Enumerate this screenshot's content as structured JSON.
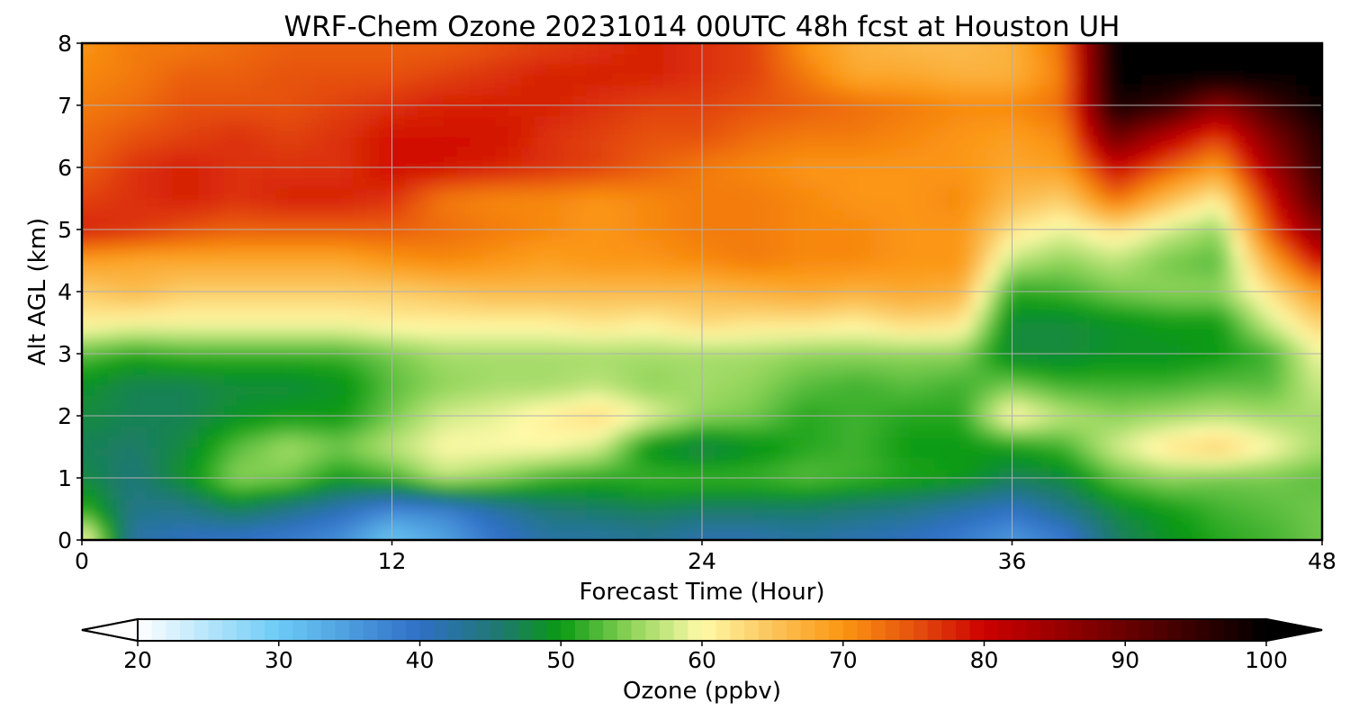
{
  "chart_data": {
    "type": "heatmap",
    "title": "WRF-Chem Ozone  20231014 00UTC 48h fcst at Houston UH",
    "xlabel": "Forecast Time (Hour)",
    "ylabel": "Alt AGL (km)",
    "xlim": [
      0,
      48
    ],
    "ylim": [
      0,
      8
    ],
    "x_ticks": [
      0,
      12,
      24,
      36,
      48
    ],
    "y_ticks": [
      0,
      1,
      2,
      3,
      4,
      5,
      6,
      7,
      8
    ],
    "grid": true,
    "x": [
      0,
      2,
      4,
      6,
      8,
      10,
      12,
      14,
      16,
      18,
      20,
      22,
      24,
      26,
      28,
      30,
      32,
      34,
      36,
      38,
      40,
      42,
      44,
      46,
      48
    ],
    "y": [
      0,
      0.5,
      1,
      1.5,
      2,
      2.5,
      3,
      3.5,
      4,
      4.5,
      5,
      5.5,
      6,
      6.5,
      7,
      7.5,
      8
    ],
    "z": [
      [
        62,
        42,
        40,
        39,
        38,
        36,
        30,
        34,
        39,
        42,
        42,
        43,
        41,
        41,
        42,
        41,
        40,
        38,
        35,
        38,
        46,
        49,
        51,
        52,
        54
      ],
      [
        52,
        44,
        44,
        47,
        44,
        41,
        37,
        38,
        42,
        45,
        46,
        47,
        46,
        46,
        46,
        45,
        44,
        42,
        40,
        44,
        48,
        50,
        52,
        53,
        54
      ],
      [
        48,
        45,
        49,
        55,
        54,
        50,
        52,
        57,
        55,
        52,
        51,
        52,
        52,
        52,
        53,
        52,
        51,
        50,
        47,
        48,
        53,
        55,
        54,
        54,
        53
      ],
      [
        47,
        46,
        48,
        53,
        56,
        54,
        57,
        60,
        60,
        60,
        58,
        49,
        47,
        49,
        51,
        52,
        50,
        50,
        50,
        52,
        58,
        62,
        64,
        60,
        56
      ],
      [
        48,
        47,
        47,
        49,
        50,
        50,
        54,
        58,
        59,
        61,
        63,
        59,
        55,
        54,
        51,
        52,
        51,
        51,
        61,
        57,
        55,
        56,
        57,
        56,
        56
      ],
      [
        49,
        47,
        47,
        48,
        48,
        49,
        53,
        55,
        56,
        56,
        57,
        55,
        56,
        55,
        53,
        52,
        53,
        52,
        54,
        52,
        52,
        52,
        53,
        53,
        58
      ],
      [
        53,
        51,
        52,
        52,
        52,
        52,
        54,
        56,
        56,
        56,
        56,
        56,
        56,
        56,
        55,
        55,
        55,
        55,
        48,
        48,
        49,
        49,
        50,
        52,
        60
      ],
      [
        61,
        60,
        60,
        60,
        60,
        60,
        61,
        61,
        61,
        61,
        62,
        61,
        63,
        62,
        62,
        61,
        63,
        62,
        48,
        48,
        49,
        50,
        50,
        58,
        64
      ],
      [
        64,
        66,
        64,
        64,
        64,
        64,
        64,
        65,
        66,
        66,
        66,
        66,
        66,
        67,
        68,
        67,
        68,
        67,
        51,
        52,
        54,
        55,
        55,
        62,
        70
      ],
      [
        69,
        68,
        68,
        68,
        68,
        68,
        70,
        71,
        70,
        69,
        70,
        70,
        71,
        72,
        71,
        71,
        70,
        70,
        57,
        55,
        57,
        54,
        53,
        68,
        80
      ],
      [
        78,
        77,
        75,
        74,
        74,
        74,
        74,
        73,
        72,
        71,
        70,
        71,
        72,
        72,
        71,
        71,
        70,
        70,
        62,
        59,
        62,
        58,
        55,
        75,
        88
      ],
      [
        76,
        77,
        78,
        77,
        78,
        78,
        77,
        72,
        71,
        71,
        70,
        71,
        72,
        72,
        71,
        70,
        70,
        71,
        66,
        64,
        73,
        66,
        61,
        79,
        94
      ],
      [
        74,
        77,
        78,
        77,
        77,
        77,
        79,
        79,
        78,
        77,
        76,
        74,
        72,
        71,
        70,
        70,
        70,
        70,
        68,
        69,
        80,
        74,
        69,
        84,
        96
      ],
      [
        73,
        75,
        76,
        77,
        76,
        77,
        79,
        79,
        79,
        77,
        76,
        75,
        75,
        73,
        72,
        72,
        71,
        70,
        69,
        71,
        90,
        82,
        76,
        88,
        97
      ],
      [
        72,
        73,
        75,
        75,
        75,
        76,
        77,
        78,
        78,
        78,
        77,
        76,
        76,
        75,
        74,
        73,
        72,
        71,
        71,
        73,
        98,
        95,
        86,
        94,
        100
      ],
      [
        71,
        72,
        74,
        74,
        75,
        75,
        75,
        76,
        77,
        78,
        78,
        78,
        77,
        76,
        72,
        68,
        68,
        67,
        67,
        72,
        100,
        100,
        100,
        100,
        100
      ],
      [
        70,
        72,
        72,
        73,
        74,
        74,
        74,
        74,
        75,
        76,
        77,
        78,
        77,
        76,
        70,
        67,
        66,
        66,
        67,
        73,
        100,
        100,
        100,
        100,
        100
      ]
    ],
    "colorbar": {
      "label": "Ozone  (ppbv)",
      "min": 20,
      "max": 100,
      "ticks": [
        20,
        30,
        40,
        50,
        60,
        70,
        80,
        90,
        100
      ],
      "extend": "both",
      "orientation": "horizontal"
    },
    "colormap": [
      [
        20,
        "#ffffff"
      ],
      [
        30,
        "#6ccbf6"
      ],
      [
        40,
        "#2f6fc6"
      ],
      [
        46,
        "#1d7a6a"
      ],
      [
        50,
        "#0a9a12"
      ],
      [
        55,
        "#8fd45a"
      ],
      [
        60,
        "#fffaa8"
      ],
      [
        65,
        "#fbc35a"
      ],
      [
        70,
        "#fb9612"
      ],
      [
        75,
        "#e6520e"
      ],
      [
        80,
        "#cc0000"
      ],
      [
        90,
        "#6a0000"
      ],
      [
        100,
        "#000000"
      ]
    ]
  }
}
